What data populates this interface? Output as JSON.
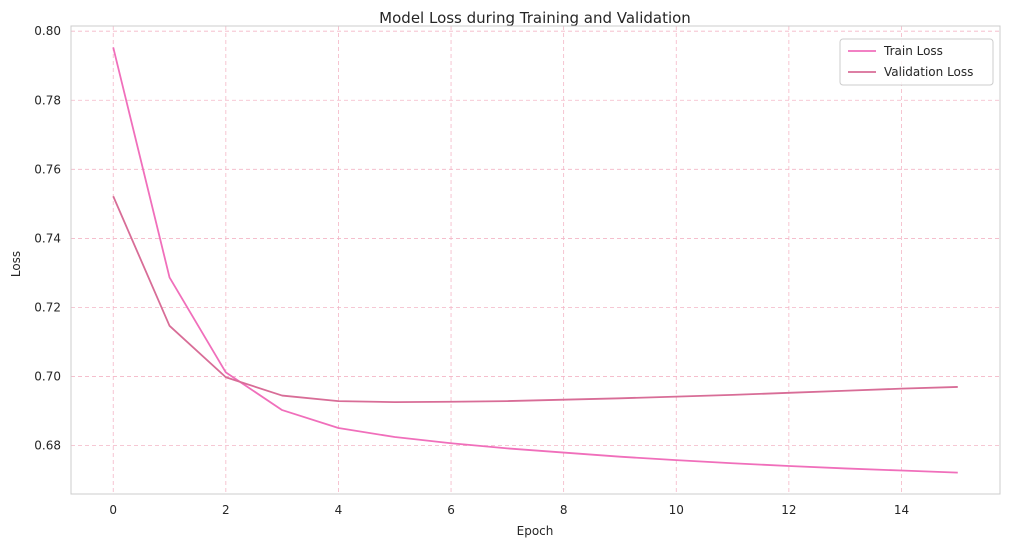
{
  "chart_data": {
    "type": "line",
    "title": "Model Loss during Training and Validation",
    "xlabel": "Epoch",
    "ylabel": "Loss",
    "xlim": [
      -0.75,
      15.75
    ],
    "ylim": [
      0.666,
      0.8015
    ],
    "xticks": [
      0,
      2,
      4,
      6,
      8,
      10,
      12,
      14
    ],
    "yticks": [
      0.68,
      0.7,
      0.72,
      0.74,
      0.76,
      0.78,
      0.8
    ],
    "ytick_labels": [
      "0.68",
      "0.70",
      "0.72",
      "0.74",
      "0.76",
      "0.78",
      "0.80"
    ],
    "xtick_labels": [
      "0",
      "2",
      "4",
      "6",
      "8",
      "10",
      "12",
      "14"
    ],
    "grid": true,
    "legend_position": "top-right",
    "x": [
      0,
      1,
      2,
      3,
      4,
      5,
      6,
      7,
      8,
      9,
      10,
      11,
      12,
      13,
      14,
      15
    ],
    "series": [
      {
        "name": "Train Loss",
        "color": "#f06fbb",
        "values": [
          0.7953,
          0.7287,
          0.7012,
          0.6903,
          0.6851,
          0.6825,
          0.6807,
          0.6792,
          0.678,
          0.6768,
          0.6758,
          0.6749,
          0.6741,
          0.6734,
          0.6728,
          0.6722
        ]
      },
      {
        "name": "Validation Loss",
        "color": "#d86d97",
        "values": [
          0.7522,
          0.7147,
          0.6998,
          0.6945,
          0.6929,
          0.6926,
          0.6927,
          0.6929,
          0.6933,
          0.6937,
          0.6942,
          0.6947,
          0.6953,
          0.6959,
          0.6965,
          0.697
        ]
      }
    ]
  },
  "colors": {
    "grid": "#f4b6c6",
    "frame": "#cccccc",
    "text": "#262626"
  }
}
